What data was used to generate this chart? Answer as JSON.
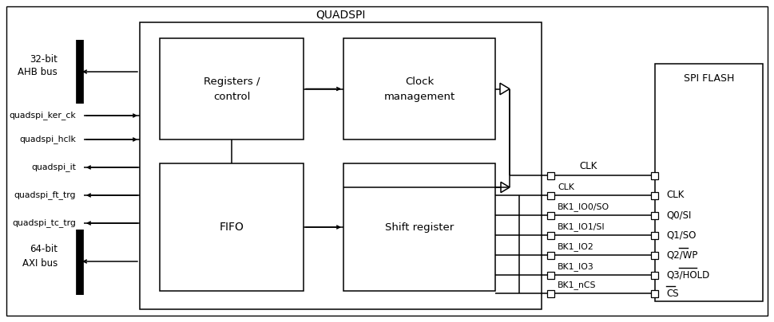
{
  "bg": "#ffffff",
  "fw": 9.69,
  "fh": 4.04,
  "dpi": 100,
  "quadspi_label": "QUADSPI",
  "spi_flash_label": "SPI FLASH",
  "reg_ctrl_label": "Registers /\ncontrol",
  "clk_mgmt_label": "Clock\nmanagement",
  "fifo_label": "FIFO",
  "shift_reg_label": "Shift register",
  "ahb_line1": "32-bit",
  "ahb_line2": "AHB bus",
  "axi_line1": "64-bit",
  "axi_line2": "AXI bus",
  "left_sigs": [
    "quadspi_ker_ck",
    "quadspi_hclk",
    "quadspi_it",
    "quadspi_ft_trg",
    "quadspi_tc_trg"
  ],
  "left_dirs": [
    "right",
    "right",
    "left",
    "left",
    "left"
  ],
  "mid_sigs": [
    "CLK",
    "BK1_IO0/SO",
    "BK1_IO1/SI",
    "BK1_IO2",
    "BK1_IO3",
    "BK1_nCS"
  ],
  "mid_overline_char": [
    "n",
    "SO",
    "SI",
    "",
    "",
    "nCS"
  ],
  "right_sigs": [
    "CLK",
    "Q0/SI",
    "Q1/SO",
    "Q2/WP",
    "Q3/HOLD",
    "CS"
  ],
  "right_overline": [
    false,
    false,
    false,
    "WP",
    "HOLD",
    "CS"
  ]
}
